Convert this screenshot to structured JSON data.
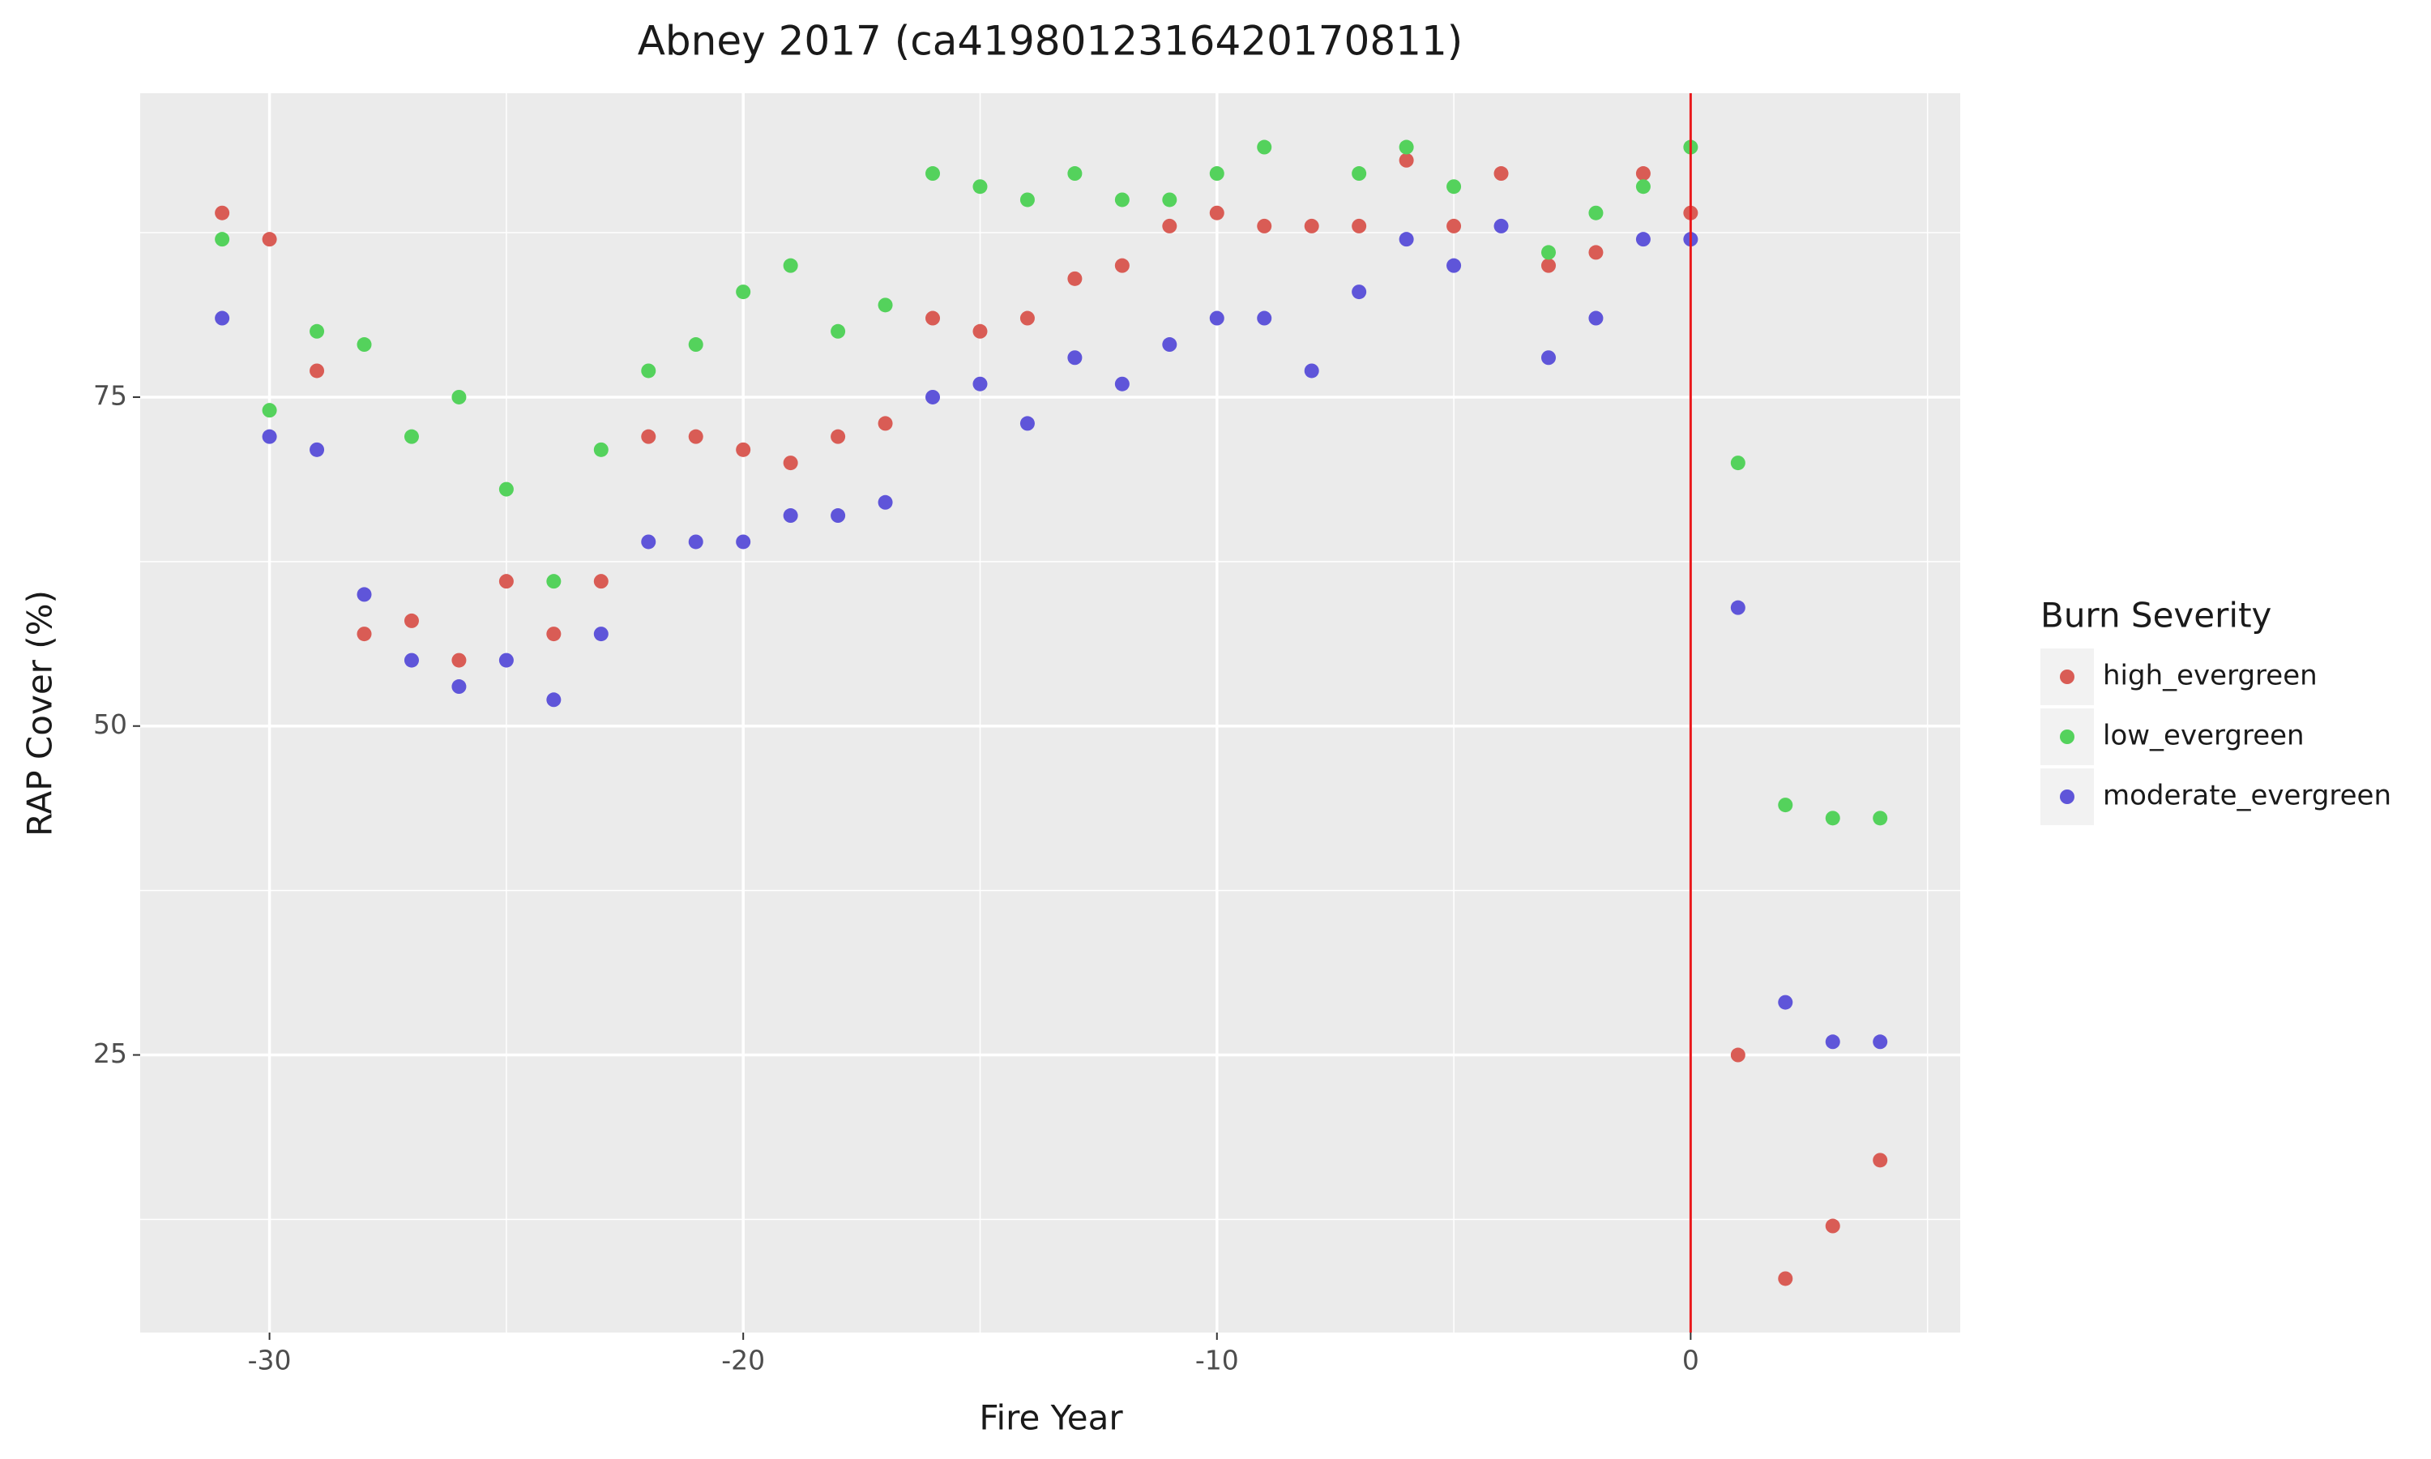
{
  "chart_data": {
    "type": "scatter",
    "title": "Abney 2017 (ca4198012316420170811)",
    "x_label": "Fire Year",
    "y_label": "RAP Cover (%)",
    "legend_title": "Burn Severity",
    "legend_position": "right",
    "x": [
      -31,
      -30,
      -29,
      -28,
      -27,
      -26,
      -25,
      -24,
      -23,
      -22,
      -21,
      -20,
      -19,
      -18,
      -17,
      -16,
      -15,
      -14,
      -13,
      -12,
      -11,
      -10,
      -9,
      -8,
      -7,
      -6,
      -5,
      -4,
      -3,
      -2,
      -1,
      0,
      1,
      2,
      3,
      4
    ],
    "series": [
      {
        "name": "high_evergreen",
        "color": "#d95c55",
        "values": [
          89,
          87,
          77,
          57,
          58,
          55,
          61,
          57,
          61,
          72,
          72,
          71,
          70,
          72,
          73,
          81,
          80,
          81,
          84,
          85,
          88,
          89,
          88,
          88,
          88,
          93,
          88,
          92,
          85,
          86,
          92,
          89,
          25,
          8,
          12,
          17
        ]
      },
      {
        "name": "low_evergreen",
        "color": "#54d25c",
        "values": [
          87,
          74,
          80,
          79,
          72,
          75,
          68,
          61,
          71,
          77,
          79,
          83,
          85,
          80,
          82,
          92,
          91,
          90,
          92,
          90,
          90,
          92,
          94,
          null,
          92,
          94,
          91,
          null,
          86,
          89,
          91,
          94,
          70,
          44,
          43,
          43
        ]
      },
      {
        "name": "moderate_evergreen",
        "color": "#5f55d9",
        "values": [
          81,
          72,
          71,
          60,
          55,
          53,
          55,
          52,
          57,
          64,
          64,
          64,
          66,
          66,
          67,
          75,
          76,
          73,
          78,
          76,
          79,
          81,
          81,
          77,
          83,
          87,
          85,
          88,
          78,
          81,
          87,
          87,
          59,
          29,
          26,
          26
        ]
      }
    ],
    "xlim": [
      -32.73,
      5.69
    ],
    "ylim": [
      3.9,
      98.1
    ],
    "xticks": [
      -30,
      -20,
      -10,
      0
    ],
    "yticks": [
      25,
      50,
      75
    ],
    "xminor": [
      -25,
      -15,
      -5,
      5
    ],
    "yminor": [
      12.5,
      37.5,
      62.5,
      87.5
    ],
    "grid": true,
    "vline": {
      "x": 0,
      "color": "#e8191c"
    }
  }
}
